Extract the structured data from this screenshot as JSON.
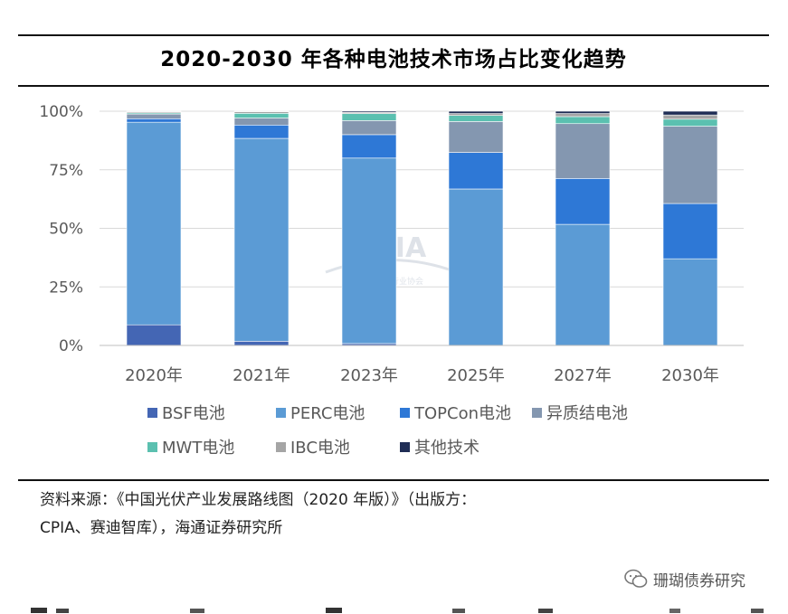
{
  "page": {
    "title": "2020-2030 年各种电池技术市场占比变化趋势",
    "source_line1": "资料来源：《中国光伏产业发展路线图（2020 年版）》（出版方：",
    "source_line2": "CPIA、赛迪智库），海通证券研究所",
    "watermark_text": "珊瑚债券研究",
    "logo_text": "CPIA",
    "logo_subtext": "中国光伏行业协会"
  },
  "chart_data": {
    "type": "bar",
    "stacked": true,
    "title": "2020-2030 年各种电池技术市场占比变化趋势",
    "xlabel": "",
    "ylabel": "",
    "ylim": [
      0,
      100
    ],
    "yticks": [
      0,
      25,
      50,
      75,
      100
    ],
    "ytick_labels": [
      "0%",
      "25%",
      "50%",
      "75%",
      "100%"
    ],
    "categories": [
      "2020年",
      "2021年",
      "2023年",
      "2025年",
      "2027年",
      "2030年"
    ],
    "series": [
      {
        "name": "BSF电池",
        "color": "#4466b4",
        "values": [
          8.8,
          1.8,
          0.8,
          0,
          0,
          0
        ]
      },
      {
        "name": "PERC电池",
        "color": "#5b9bd5",
        "values": [
          86.5,
          86.6,
          79.2,
          66.8,
          51.7,
          37.0
        ]
      },
      {
        "name": "TOPCon电池",
        "color": "#2e78d6",
        "values": [
          1.5,
          5.7,
          10.0,
          15.6,
          19.6,
          23.6
        ]
      },
      {
        "name": "异质结电池",
        "color": "#8497b0",
        "values": [
          2.0,
          3.0,
          6.0,
          13.2,
          23.4,
          33.0
        ]
      },
      {
        "name": "MWT电池",
        "color": "#5bc0b0",
        "values": [
          0.5,
          2.0,
          3.0,
          2.6,
          3.0,
          3.0
        ]
      },
      {
        "name": "IBC电池",
        "color": "#a5a5a5",
        "values": [
          0.5,
          0.7,
          0.5,
          0.8,
          1.3,
          1.8
        ]
      },
      {
        "name": "其他技术",
        "color": "#1f2d55",
        "values": [
          0.2,
          0.2,
          0.5,
          1.0,
          1.0,
          1.6
        ]
      }
    ],
    "legend_position": "bottom",
    "grid": true
  }
}
